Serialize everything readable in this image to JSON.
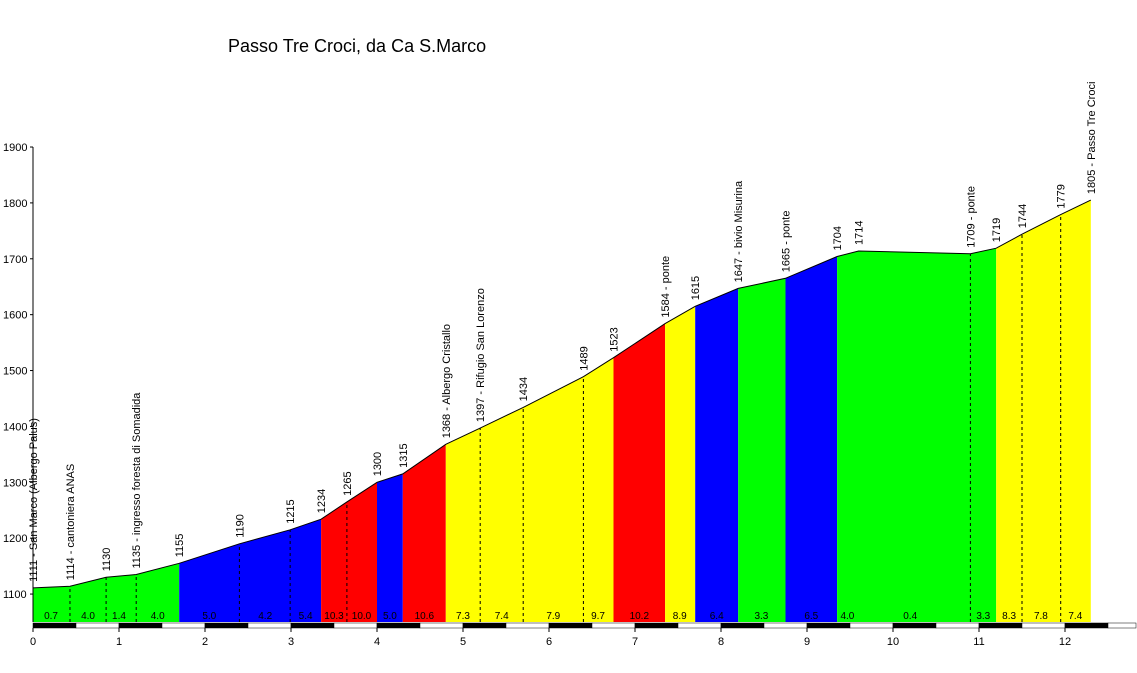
{
  "chart_data": {
    "type": "area",
    "title": "Passo Tre Croci, da Ca S.Marco",
    "xlabel": "",
    "ylabel": "",
    "xlim": [
      0,
      12.3
    ],
    "ylim": [
      1050,
      1900
    ],
    "x_ticks": [
      0,
      1,
      2,
      3,
      4,
      5,
      6,
      7,
      8,
      9,
      10,
      11,
      12
    ],
    "y_ticks": [
      1100,
      1200,
      1300,
      1400,
      1500,
      1600,
      1700,
      1800,
      1900
    ],
    "grid": false,
    "profile": [
      {
        "x": 0.0,
        "y": 1111
      },
      {
        "x": 0.43,
        "y": 1114
      },
      {
        "x": 0.85,
        "y": 1130
      },
      {
        "x": 1.2,
        "y": 1135
      },
      {
        "x": 1.7,
        "y": 1155
      },
      {
        "x": 2.4,
        "y": 1190
      },
      {
        "x": 2.99,
        "y": 1215
      },
      {
        "x": 3.35,
        "y": 1234
      },
      {
        "x": 3.65,
        "y": 1265
      },
      {
        "x": 4.0,
        "y": 1300
      },
      {
        "x": 4.3,
        "y": 1315
      },
      {
        "x": 4.8,
        "y": 1368
      },
      {
        "x": 5.2,
        "y": 1397
      },
      {
        "x": 5.7,
        "y": 1434
      },
      {
        "x": 6.4,
        "y": 1489
      },
      {
        "x": 6.75,
        "y": 1523
      },
      {
        "x": 7.35,
        "y": 1584
      },
      {
        "x": 7.7,
        "y": 1615
      },
      {
        "x": 8.2,
        "y": 1647
      },
      {
        "x": 8.75,
        "y": 1665
      },
      {
        "x": 9.35,
        "y": 1704
      },
      {
        "x": 9.6,
        "y": 1714
      },
      {
        "x": 10.9,
        "y": 1709
      },
      {
        "x": 11.2,
        "y": 1719
      },
      {
        "x": 11.5,
        "y": 1744
      },
      {
        "x": 11.95,
        "y": 1779
      },
      {
        "x": 12.3,
        "y": 1805
      }
    ],
    "segments": [
      {
        "x0": 0.0,
        "x1": 1.7,
        "color": "#00ff00",
        "grades": [
          {
            "x": 0.21,
            "label": "0.7"
          },
          {
            "x": 0.64,
            "label": "4.0"
          },
          {
            "x": 1.0,
            "label": "1.4"
          },
          {
            "x": 1.45,
            "label": "4.0"
          }
        ]
      },
      {
        "x0": 1.7,
        "x1": 3.35,
        "color": "#0000ff",
        "grades": [
          {
            "x": 2.05,
            "label": "5.0"
          },
          {
            "x": 2.7,
            "label": "4.2"
          },
          {
            "x": 3.17,
            "label": "5.4"
          }
        ]
      },
      {
        "x0": 3.35,
        "x1": 4.0,
        "color": "#ff0000",
        "grades": [
          {
            "x": 3.5,
            "label": "10.3"
          },
          {
            "x": 3.82,
            "label": "10.0"
          }
        ]
      },
      {
        "x0": 4.0,
        "x1": 4.3,
        "color": "#0000ff",
        "grades": [
          {
            "x": 4.15,
            "label": "5.0"
          }
        ]
      },
      {
        "x0": 4.3,
        "x1": 4.8,
        "color": "#ff0000",
        "grades": [
          {
            "x": 4.55,
            "label": "10.6"
          }
        ]
      },
      {
        "x0": 4.8,
        "x1": 6.75,
        "color": "#ffff00",
        "grades": [
          {
            "x": 5.0,
            "label": "7.3"
          },
          {
            "x": 5.45,
            "label": "7.4"
          },
          {
            "x": 6.05,
            "label": "7.9"
          },
          {
            "x": 6.57,
            "label": "9.7"
          }
        ]
      },
      {
        "x0": 6.75,
        "x1": 7.35,
        "color": "#ff0000",
        "grades": [
          {
            "x": 7.05,
            "label": "10.2"
          }
        ]
      },
      {
        "x0": 7.35,
        "x1": 7.7,
        "color": "#ffff00",
        "grades": [
          {
            "x": 7.52,
            "label": "8.9"
          }
        ]
      },
      {
        "x0": 7.7,
        "x1": 8.2,
        "color": "#0000ff",
        "grades": [
          {
            "x": 7.95,
            "label": "6.4"
          }
        ]
      },
      {
        "x0": 8.2,
        "x1": 8.75,
        "color": "#00ff00",
        "grades": [
          {
            "x": 8.47,
            "label": "3.3"
          }
        ]
      },
      {
        "x0": 8.75,
        "x1": 9.35,
        "color": "#0000ff",
        "grades": [
          {
            "x": 9.05,
            "label": "6.5"
          }
        ]
      },
      {
        "x0": 9.35,
        "x1": 11.2,
        "color": "#00ff00",
        "grades": [
          {
            "x": 9.47,
            "label": "4.0"
          },
          {
            "x": 10.2,
            "label": "0.4"
          },
          {
            "x": 11.05,
            "label": "3.3"
          }
        ]
      },
      {
        "x0": 11.2,
        "x1": 12.3,
        "color": "#ffff00",
        "grades": [
          {
            "x": 11.35,
            "label": "8.3"
          },
          {
            "x": 11.72,
            "label": "7.8"
          },
          {
            "x": 12.12,
            "label": "7.4"
          }
        ]
      }
    ],
    "dividers": [
      0.43,
      0.85,
      1.2,
      2.4,
      2.99,
      3.65,
      5.2,
      5.7,
      6.4,
      10.9,
      11.5,
      11.95
    ],
    "annotations": [
      {
        "x": 0.0,
        "y": 1111,
        "label": "1111 - San Marco (Albergo Palus)"
      },
      {
        "x": 0.43,
        "y": 1114,
        "label": "1114 - cantoniera  ANAS"
      },
      {
        "x": 0.85,
        "y": 1130,
        "label": "1130"
      },
      {
        "x": 1.2,
        "y": 1135,
        "label": "1135 - ingresso foresta di Somadida"
      },
      {
        "x": 1.7,
        "y": 1155,
        "label": "1155"
      },
      {
        "x": 2.4,
        "y": 1190,
        "label": "1190"
      },
      {
        "x": 2.99,
        "y": 1215,
        "label": "1215"
      },
      {
        "x": 3.35,
        "y": 1234,
        "label": "1234"
      },
      {
        "x": 3.65,
        "y": 1265,
        "label": "1265"
      },
      {
        "x": 4.0,
        "y": 1300,
        "label": "1300"
      },
      {
        "x": 4.3,
        "y": 1315,
        "label": "1315"
      },
      {
        "x": 4.8,
        "y": 1368,
        "label": "1368 - Albergo Cristallo"
      },
      {
        "x": 5.2,
        "y": 1397,
        "label": "1397 - Rifugio San Lorenzo"
      },
      {
        "x": 5.7,
        "y": 1434,
        "label": "1434"
      },
      {
        "x": 6.4,
        "y": 1489,
        "label": "1489"
      },
      {
        "x": 6.75,
        "y": 1523,
        "label": "1523"
      },
      {
        "x": 7.35,
        "y": 1584,
        "label": "1584 - ponte"
      },
      {
        "x": 7.7,
        "y": 1615,
        "label": "1615"
      },
      {
        "x": 8.2,
        "y": 1647,
        "label": "1647 - bivio Misurina"
      },
      {
        "x": 8.75,
        "y": 1665,
        "label": "1665 - ponte"
      },
      {
        "x": 9.35,
        "y": 1704,
        "label": "1704"
      },
      {
        "x": 9.6,
        "y": 1714,
        "label": "1714"
      },
      {
        "x": 10.9,
        "y": 1709,
        "label": "1709 - ponte"
      },
      {
        "x": 11.2,
        "y": 1719,
        "label": "1719"
      },
      {
        "x": 11.5,
        "y": 1744,
        "label": "1744"
      },
      {
        "x": 11.95,
        "y": 1779,
        "label": "1779"
      },
      {
        "x": 12.3,
        "y": 1805,
        "label": "1805 - Passo Tre Croci"
      }
    ],
    "colors": {
      "green": "#00ff00",
      "blue": "#0000ff",
      "red": "#ff0000",
      "yellow": "#ffff00",
      "axis": "#000000"
    }
  }
}
